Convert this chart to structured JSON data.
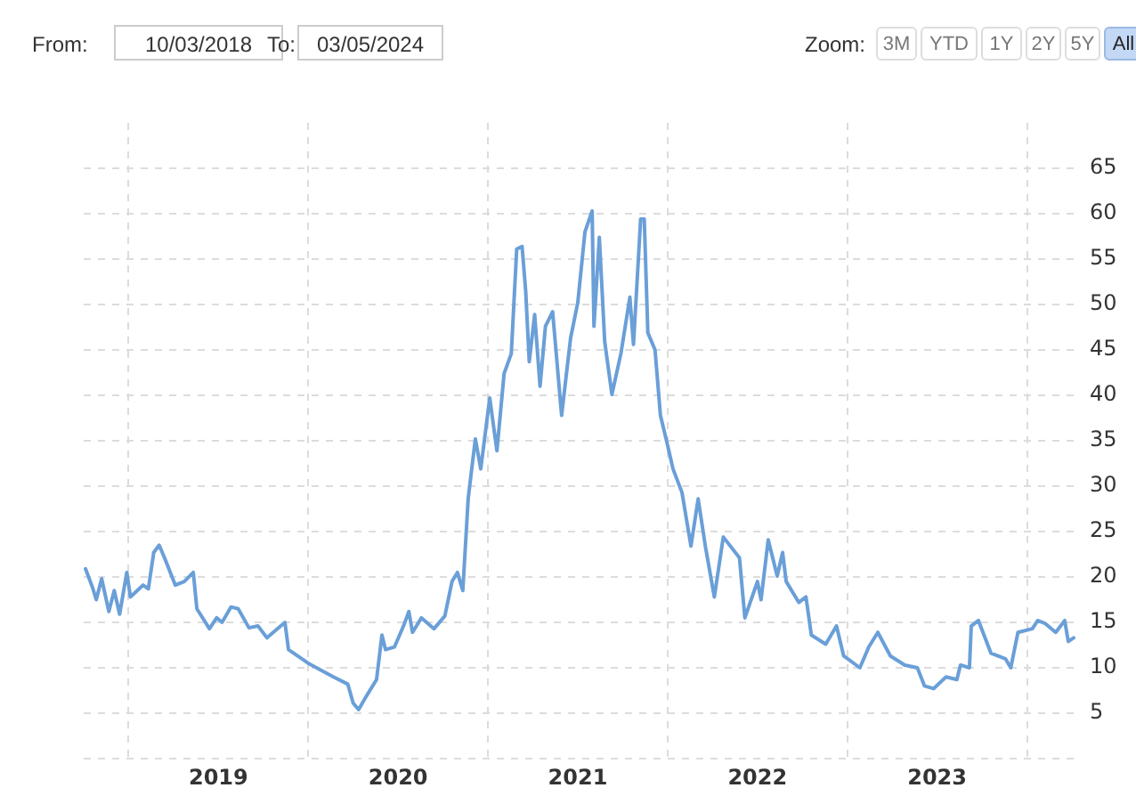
{
  "chart_data": {
    "type": "line",
    "annotations": [
      "From:",
      "10/03/2018",
      "To:",
      "03/05/2024",
      "Zoom:",
      "3M",
      "YTD",
      "1Y",
      "2Y",
      "5Y",
      "All"
    ],
    "x": [
      2018.76,
      2018.8,
      2018.82,
      2018.85,
      2018.89,
      2018.92,
      2018.95,
      2018.99,
      2019.01,
      2019.08,
      2019.11,
      2019.14,
      2019.17,
      2019.2,
      2019.26,
      2019.31,
      2019.36,
      2019.38,
      2019.45,
      2019.49,
      2019.52,
      2019.57,
      2019.61,
      2019.67,
      2019.72,
      2019.77,
      2019.87,
      2019.89,
      2020.0,
      2020.14,
      2020.22,
      2020.25,
      2020.28,
      2020.33,
      2020.38,
      2020.41,
      2020.43,
      2020.48,
      2020.53,
      2020.56,
      2020.58,
      2020.63,
      2020.7,
      2020.76,
      2020.8,
      2020.83,
      2020.86,
      2020.89,
      2020.9,
      2020.93,
      2020.96,
      2021.01,
      2021.05,
      2021.09,
      2021.13,
      2021.16,
      2021.19,
      2021.21,
      2021.23,
      2021.26,
      2021.29,
      2021.32,
      2021.36,
      2021.41,
      2021.46,
      2021.5,
      2021.54,
      2021.58,
      2021.59,
      2021.62,
      2021.65,
      2021.69,
      2021.74,
      2021.79,
      2021.81,
      2021.85,
      2021.87,
      2021.89,
      2021.93,
      2021.96,
      2022.0,
      2022.03,
      2022.08,
      2022.13,
      2022.17,
      2022.21,
      2022.26,
      2022.31,
      2022.4,
      2022.43,
      2022.5,
      2022.52,
      2022.56,
      2022.61,
      2022.64,
      2022.66,
      2022.73,
      2022.77,
      2022.8,
      2022.88,
      2022.94,
      2022.98,
      2023.07,
      2023.12,
      2023.17,
      2023.24,
      2023.32,
      2023.39,
      2023.43,
      2023.48,
      2023.55,
      2023.61,
      2023.63,
      2023.68,
      2023.69,
      2023.73,
      2023.8,
      2023.88,
      2023.91,
      2023.95,
      2024.03,
      2024.06,
      2024.1,
      2024.16,
      2024.21,
      2024.23,
      2024.26
    ],
    "series": [
      {
        "color": "#6a9fd8",
        "values": [
          20.9,
          18.8,
          17.5,
          19.8,
          16.2,
          18.5,
          15.9,
          20.5,
          17.8,
          19.1,
          18.7,
          22.7,
          23.5,
          22.1,
          19.1,
          19.5,
          20.5,
          16.5,
          14.3,
          15.5,
          15.0,
          16.7,
          16.5,
          14.4,
          14.6,
          13.3,
          15.0,
          12.0,
          10.5,
          9.0,
          8.2,
          6.1,
          5.4,
          7.1,
          8.7,
          13.6,
          12.0,
          12.3,
          14.6,
          16.2,
          13.9,
          15.5,
          14.3,
          15.7,
          19.5,
          20.5,
          18.5,
          28.6,
          30.3,
          35.2,
          31.9,
          39.7,
          33.9,
          42.4,
          44.6,
          56.1,
          56.4,
          51.5,
          43.7,
          48.9,
          41.0,
          47.6,
          49.2,
          37.8,
          46.3,
          50.2,
          58.0,
          60.3,
          47.6,
          57.4,
          45.9,
          40.1,
          44.6,
          50.8,
          45.6,
          59.4,
          59.4,
          46.9,
          45.0,
          37.8,
          34.5,
          31.9,
          29.3,
          23.4,
          28.6,
          23.4,
          17.8,
          24.4,
          22.1,
          15.5,
          19.5,
          17.5,
          24.1,
          20.1,
          22.7,
          19.5,
          17.2,
          17.8,
          13.6,
          12.6,
          14.6,
          11.3,
          10.0,
          12.3,
          13.9,
          11.3,
          10.3,
          10.0,
          8.0,
          7.7,
          9.0,
          8.7,
          10.3,
          10.0,
          14.6,
          15.2,
          11.6,
          11.0,
          10.0,
          13.9,
          14.3,
          15.2,
          14.9,
          13.9,
          15.2,
          12.9,
          13.3
        ]
      }
    ],
    "xlim": [
      2018.75,
      2024.27
    ],
    "xticks": [
      {
        "value": 2019,
        "label": null
      },
      {
        "value": 2019.5,
        "label": "2019"
      },
      {
        "value": 2020,
        "label": null
      },
      {
        "value": 2020.5,
        "label": "2020"
      },
      {
        "value": 2021,
        "label": null
      },
      {
        "value": 2021.5,
        "label": "2021"
      },
      {
        "value": 2022,
        "label": null
      },
      {
        "value": 2022.5,
        "label": "2022"
      },
      {
        "value": 2023,
        "label": null
      },
      {
        "value": 2023.5,
        "label": "2023"
      },
      {
        "value": 2024,
        "label": null
      }
    ],
    "ylim": [
      0,
      70
    ],
    "yticks": [
      {
        "value": 0,
        "label": null
      },
      5,
      10,
      15,
      20,
      25,
      30,
      35,
      40,
      45,
      50,
      55,
      60,
      65
    ],
    "grid": true,
    "legend": false,
    "marker": "none",
    "line_style": "solid"
  }
}
